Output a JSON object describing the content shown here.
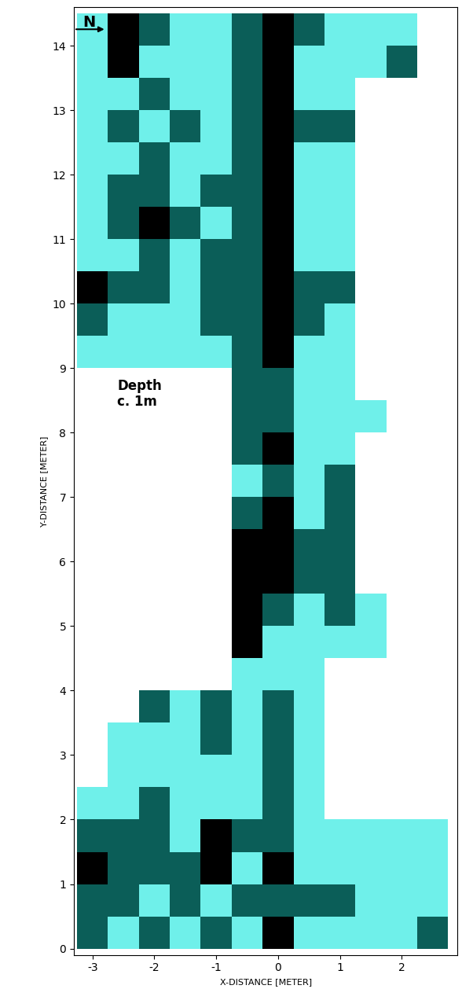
{
  "chart_data": {
    "type": "heatmap",
    "north_label": "N",
    "annotation": "Depth\nc. 1m",
    "annotation_position": [
      -2.6,
      8.6
    ],
    "x_label": "X-DISTANCE [METER]",
    "y_label": "Y-DISTANCE [METER]",
    "xlim": [
      -3.3,
      2.9
    ],
    "ylim": [
      -0.1,
      14.6
    ],
    "xticks": [
      -3,
      -2,
      -1,
      0,
      1,
      2
    ],
    "yticks": [
      0,
      1,
      2,
      3,
      4,
      5,
      6,
      7,
      8,
      9,
      10,
      11,
      12,
      13,
      14
    ],
    "grid": false,
    "colors": [
      "#a6f2a0",
      "#6ff0ea",
      "#0b5e58",
      "#000000"
    ],
    "color_range": [
      0,
      3
    ],
    "x": [
      -3.0,
      -2.5,
      -2.0,
      -1.5,
      -1.0,
      -0.5,
      0.0,
      0.5,
      1.0,
      1.5,
      2.0,
      2.5
    ],
    "y": [
      0.25,
      0.75,
      1.25,
      1.75,
      2.25,
      2.75,
      3.25,
      3.75,
      4.25,
      4.75,
      5.25,
      5.75,
      6.25,
      6.75,
      7.25,
      7.75,
      8.25,
      8.75,
      9.25,
      9.75,
      10.25,
      10.75,
      11.25,
      11.75,
      12.25,
      12.75,
      13.25,
      13.75,
      14.25
    ],
    "cells": [
      [
        2,
        1,
        2,
        1,
        2,
        1,
        3,
        1,
        1,
        1,
        1,
        2
      ],
      [
        2,
        2,
        1,
        2,
        1,
        2,
        2,
        2,
        2,
        1,
        1,
        1
      ],
      [
        3,
        2,
        2,
        2,
        3,
        1,
        3,
        1,
        1,
        1,
        1,
        1
      ],
      [
        2,
        2,
        2,
        1,
        3,
        2,
        2,
        1,
        1,
        1,
        1,
        1
      ],
      [
        1,
        1,
        2,
        1,
        1,
        1,
        2,
        1,
        null,
        null,
        null,
        null
      ],
      [
        null,
        1,
        1,
        1,
        1,
        1,
        2,
        1,
        null,
        null,
        null,
        null
      ],
      [
        null,
        1,
        1,
        1,
        2,
        1,
        2,
        1,
        null,
        null,
        null,
        null
      ],
      [
        null,
        null,
        2,
        1,
        2,
        1,
        2,
        1,
        null,
        null,
        null,
        null
      ],
      [
        null,
        null,
        null,
        null,
        null,
        1,
        1,
        1,
        null,
        null,
        null,
        null
      ],
      [
        null,
        null,
        null,
        null,
        null,
        3,
        1,
        1,
        1,
        1,
        null,
        null
      ],
      [
        null,
        null,
        null,
        null,
        null,
        3,
        2,
        1,
        2,
        1,
        null,
        null
      ],
      [
        null,
        null,
        null,
        null,
        null,
        3,
        3,
        2,
        2,
        null,
        null,
        null
      ],
      [
        null,
        null,
        null,
        null,
        null,
        3,
        3,
        2,
        2,
        null,
        null,
        null
      ],
      [
        null,
        null,
        null,
        null,
        null,
        2,
        3,
        1,
        2,
        null,
        null,
        null
      ],
      [
        null,
        null,
        null,
        null,
        null,
        1,
        2,
        1,
        2,
        null,
        null,
        null
      ],
      [
        null,
        null,
        null,
        null,
        null,
        2,
        3,
        1,
        1,
        null,
        null,
        null
      ],
      [
        null,
        null,
        null,
        null,
        null,
        2,
        2,
        1,
        1,
        1,
        null,
        null
      ],
      [
        null,
        null,
        null,
        null,
        null,
        2,
        2,
        1,
        1,
        null,
        null,
        null
      ],
      [
        1,
        1,
        1,
        1,
        1,
        2,
        3,
        1,
        1,
        null,
        null,
        null
      ],
      [
        2,
        1,
        1,
        1,
        2,
        2,
        3,
        2,
        1,
        null,
        null,
        null
      ],
      [
        3,
        2,
        2,
        1,
        2,
        2,
        3,
        2,
        2,
        null,
        null,
        null
      ],
      [
        1,
        1,
        2,
        1,
        2,
        2,
        3,
        1,
        1,
        null,
        null,
        null
      ],
      [
        1,
        2,
        3,
        2,
        1,
        2,
        3,
        1,
        1,
        null,
        null,
        null
      ],
      [
        1,
        2,
        2,
        1,
        2,
        2,
        3,
        1,
        1,
        null,
        null,
        null
      ],
      [
        1,
        1,
        2,
        1,
        1,
        2,
        3,
        1,
        1,
        null,
        null,
        null
      ],
      [
        1,
        2,
        1,
        2,
        1,
        2,
        3,
        2,
        2,
        null,
        null,
        null
      ],
      [
        1,
        1,
        2,
        1,
        1,
        2,
        3,
        1,
        1,
        null,
        null,
        null
      ],
      [
        1,
        3,
        1,
        1,
        1,
        2,
        3,
        1,
        1,
        1,
        2,
        null
      ],
      [
        1,
        3,
        2,
        1,
        1,
        2,
        3,
        2,
        1,
        1,
        1,
        null
      ]
    ]
  }
}
